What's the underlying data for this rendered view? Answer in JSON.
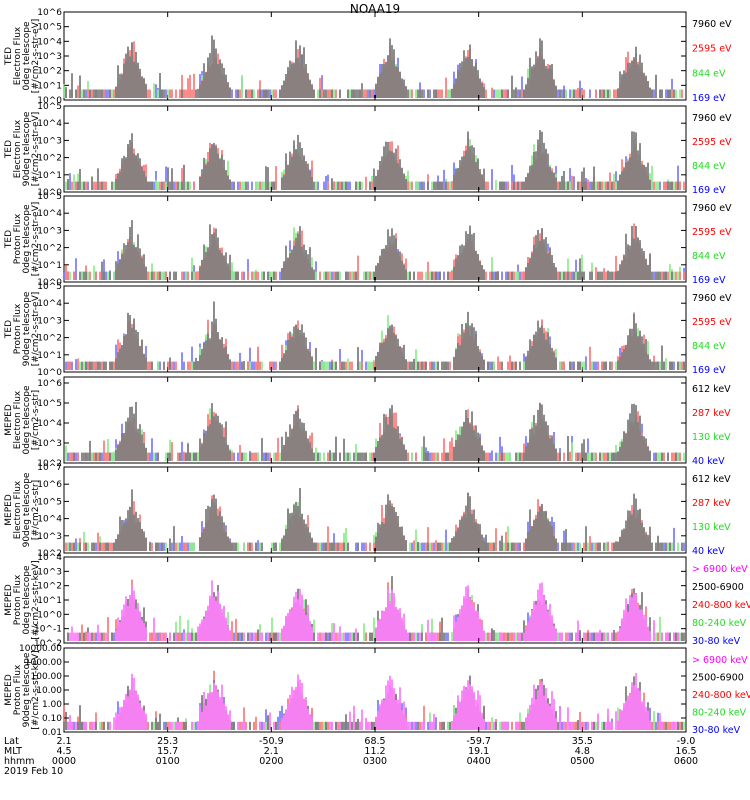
{
  "title": "NOAA19",
  "colors": {
    "black": "#000000",
    "red": "#ff0000",
    "green": "#22dd22",
    "blue": "#0000ff",
    "magenta": "#ff00ff"
  },
  "chart_data": [
    {
      "type": "line",
      "title": "",
      "ylabel_lines": [
        "TED",
        "Electron Flux",
        "0deg telescope",
        "[#/cm2-s-str-eV]"
      ],
      "ytick_labels": [
        "10^0",
        "10^1",
        "10^2",
        "10^3",
        "10^4",
        "10^5",
        "10^6"
      ],
      "ylim_exp": [
        0,
        6
      ],
      "log": true,
      "legend": [
        {
          "label": "7960 eV",
          "color": "#000000"
        },
        {
          "label": "2595 eV",
          "color": "#ff0000"
        },
        {
          "label": "844 eV",
          "color": "#22dd22"
        },
        {
          "label": "169 eV",
          "color": "#0000ff"
        }
      ],
      "profile": "ted_e",
      "seed": 3
    },
    {
      "type": "line",
      "title": "",
      "ylabel_lines": [
        "TED",
        "Electron Flux",
        "90deg telescope",
        "[#/cm2-s-str-eV]"
      ],
      "ytick_labels": [
        "10^0",
        "10^1",
        "10^2",
        "10^3",
        "10^4",
        "10^5"
      ],
      "ylim_exp": [
        0,
        5
      ],
      "log": true,
      "legend": [
        {
          "label": "7960 eV",
          "color": "#000000"
        },
        {
          "label": "2595 eV",
          "color": "#ff0000"
        },
        {
          "label": "844 eV",
          "color": "#22dd22"
        },
        {
          "label": "169 eV",
          "color": "#0000ff"
        }
      ],
      "profile": "ted_e90",
      "seed": 7
    },
    {
      "type": "line",
      "title": "",
      "ylabel_lines": [
        "TED",
        "Proton Flux",
        "0deg telescope",
        "[#/cm2-s-str-eV]"
      ],
      "ytick_labels": [
        "10^0",
        "10^1",
        "10^2",
        "10^3",
        "10^4",
        "10^5"
      ],
      "ylim_exp": [
        0,
        5
      ],
      "log": true,
      "legend": [
        {
          "label": "7960 eV",
          "color": "#000000"
        },
        {
          "label": "2595 eV",
          "color": "#ff0000"
        },
        {
          "label": "844 eV",
          "color": "#22dd22"
        },
        {
          "label": "169 eV",
          "color": "#0000ff"
        }
      ],
      "profile": "ted_p",
      "seed": 11
    },
    {
      "type": "line",
      "title": "",
      "ylabel_lines": [
        "TED",
        "Proton Flux",
        "90deg telescope",
        "[#/cm2-s-str-eV]"
      ],
      "ytick_labels": [
        "10^0",
        "10^1",
        "10^2",
        "10^3",
        "10^4",
        "10^5"
      ],
      "ylim_exp": [
        0,
        5
      ],
      "log": true,
      "legend": [
        {
          "label": "7960 eV",
          "color": "#000000"
        },
        {
          "label": "2595 eV",
          "color": "#ff0000"
        },
        {
          "label": "844 eV",
          "color": "#22dd22"
        },
        {
          "label": "169 eV",
          "color": "#0000ff"
        }
      ],
      "profile": "ted_p90",
      "seed": 13
    },
    {
      "type": "line",
      "title": "",
      "ylabel_lines": [
        "MEPED",
        "Electron Flux",
        "0deg telescope",
        "[#/cm2-s-str]"
      ],
      "ytick_labels": [
        "10^2",
        "10^3",
        "10^4",
        "10^5",
        "10^6"
      ],
      "ylim_exp": [
        2,
        6.3
      ],
      "log": true,
      "legend": [
        {
          "label": "612 keV",
          "color": "#000000"
        },
        {
          "label": "287 keV",
          "color": "#ff0000"
        },
        {
          "label": "130 keV",
          "color": "#22dd22"
        },
        {
          "label": "40 keV",
          "color": "#0000ff"
        }
      ],
      "profile": "mep_e",
      "seed": 17
    },
    {
      "type": "line",
      "title": "",
      "ylabel_lines": [
        "MEPED",
        "Electron Flux",
        "90deg telescope",
        "[#/cm2-s-str]"
      ],
      "ytick_labels": [
        "10^2",
        "10^3",
        "10^4",
        "10^5",
        "10^6",
        "10^7"
      ],
      "ylim_exp": [
        2,
        7
      ],
      "log": true,
      "legend": [
        {
          "label": "612 keV",
          "color": "#000000"
        },
        {
          "label": "287 keV",
          "color": "#ff0000"
        },
        {
          "label": "130 keV",
          "color": "#22dd22"
        },
        {
          "label": "40 keV",
          "color": "#0000ff"
        }
      ],
      "profile": "mep_e90",
      "seed": 19
    },
    {
      "type": "line",
      "title": "",
      "ylabel_lines": [
        "MEPED",
        "Proton Flux",
        "0deg telescope",
        "[#/cm2-s-str-keV]"
      ],
      "ytick_labels": [
        "10^-2",
        "10^-1",
        "10^0",
        "10^1",
        "10^2",
        "10^3",
        "10^4"
      ],
      "ylim_exp": [
        -2,
        4
      ],
      "log": true,
      "legend": [
        {
          "label": "> 6900 keV",
          "color": "#ff00ff"
        },
        {
          "label": "2500-6900",
          "color": "#000000"
        },
        {
          "label": "240-800 keV",
          "color": "#ff0000"
        },
        {
          "label": "80-240 keV",
          "color": "#22dd22"
        },
        {
          "label": "30-80 keV",
          "color": "#0000ff"
        }
      ],
      "profile": "mep_p",
      "seed": 23
    },
    {
      "type": "line",
      "title": "",
      "ylabel_lines": [
        "MEPED",
        "Proton Flux",
        "90deg telescope",
        "[#/cm2-s-str-keV]"
      ],
      "ytick_labels": [
        "0.01",
        "0.10",
        "1.00",
        "10.00",
        "100.00",
        "1000.00",
        "10000.00"
      ],
      "ylim_exp": [
        -2,
        4
      ],
      "log": true,
      "legend": [
        {
          "label": "> 6900 keV",
          "color": "#ff00ff"
        },
        {
          "label": "2500-6900",
          "color": "#000000"
        },
        {
          "label": "240-800 keV",
          "color": "#ff0000"
        },
        {
          "label": "80-240 keV",
          "color": "#22dd22"
        },
        {
          "label": "30-80 keV",
          "color": "#0000ff"
        }
      ],
      "profile": "mep_p90",
      "seed": 29
    }
  ],
  "x_axis": {
    "row_labels": [
      "Lat",
      "MLT",
      "hhmm"
    ],
    "columns": [
      {
        "lat": "2.1",
        "mlt": "4.5",
        "hhmm": "0000"
      },
      {
        "lat": "25.3",
        "mlt": "15.7",
        "hhmm": "0100"
      },
      {
        "lat": "-50.9",
        "mlt": "2.1",
        "hhmm": "0200"
      },
      {
        "lat": "68.5",
        "mlt": "11.2",
        "hhmm": "0300"
      },
      {
        "lat": "-59.7",
        "mlt": "19.1",
        "hhmm": "0400"
      },
      {
        "lat": "35.5",
        "mlt": "4.8",
        "hhmm": "0500"
      },
      {
        "lat": "-9.0",
        "mlt": "16.5",
        "hhmm": "0600"
      }
    ],
    "date": "2019 Feb 10",
    "hours_range": [
      0,
      6
    ]
  }
}
